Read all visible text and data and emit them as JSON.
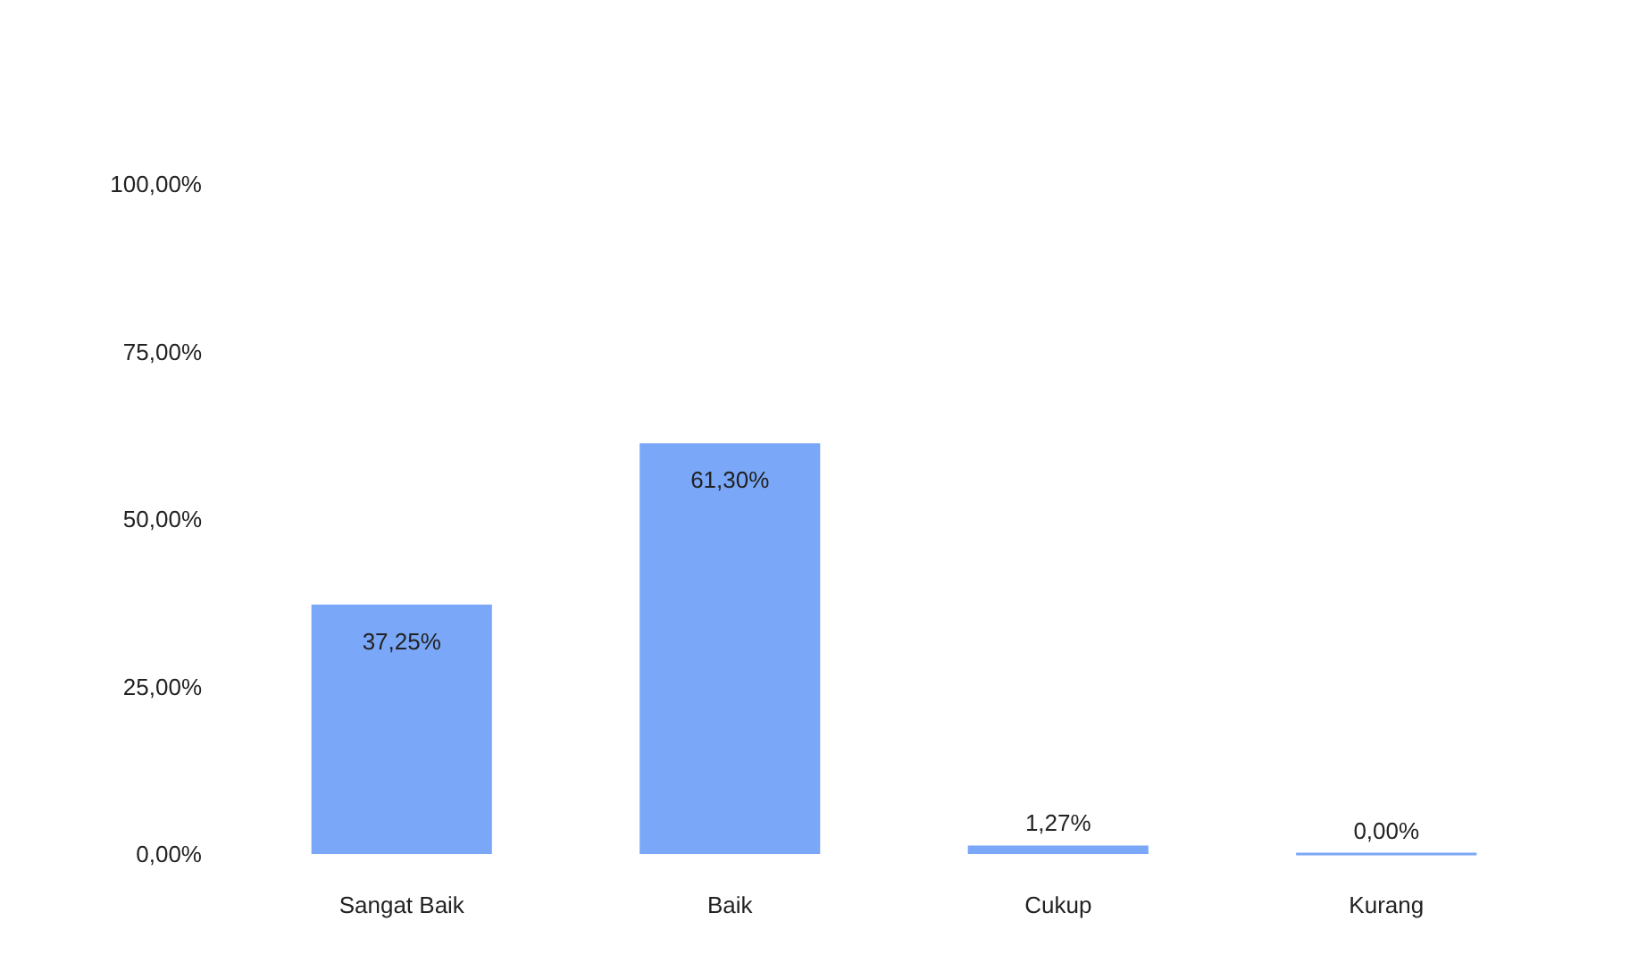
{
  "chart_data": {
    "type": "bar",
    "categories": [
      "Sangat Baik",
      "Baik",
      "Cukup",
      "Kurang"
    ],
    "values": [
      37.25,
      61.3,
      1.27,
      0.0
    ],
    "value_labels": [
      "37,25%",
      "61,30%",
      "1,27%",
      "0,00%"
    ],
    "color": "#7aa7f7",
    "ylim": [
      0,
      100
    ],
    "yticks": [
      {
        "value": 0,
        "label": "0,00%"
      },
      {
        "value": 25,
        "label": "25,00%"
      },
      {
        "value": 50,
        "label": "50,00%"
      },
      {
        "value": 75,
        "label": "75,00%"
      },
      {
        "value": 100,
        "label": "100,00%"
      }
    ],
    "grid": false
  }
}
